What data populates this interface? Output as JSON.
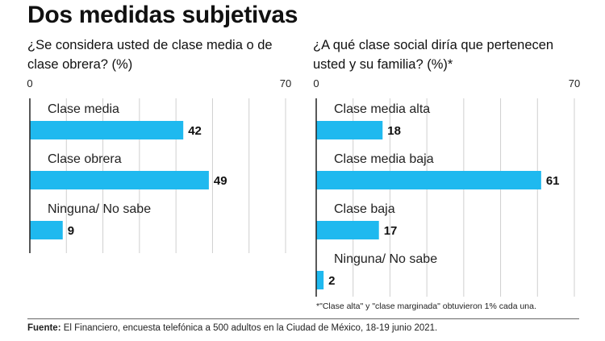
{
  "title": "Dos medidas subjetivas",
  "colors": {
    "bar": "#1fb9ef",
    "grid": "#cfcfcf",
    "axis": "#222222"
  },
  "chart_data": [
    {
      "type": "bar",
      "orientation": "horizontal",
      "title": "¿Se considera usted de clase media o de clase obrera? (%)",
      "categories": [
        "Clase media",
        "Clase obrera",
        "Ninguna/ No sabe"
      ],
      "values": [
        42,
        49,
        9
      ],
      "xlim": [
        0,
        70
      ],
      "tick_labels": [
        "0",
        "70"
      ]
    },
    {
      "type": "bar",
      "orientation": "horizontal",
      "title": "¿A qué clase social diría que pertenecen usted y su familia? (%)*",
      "categories": [
        "Clase media alta",
        "Clase media baja",
        "Clase baja",
        "Ninguna/ No sabe"
      ],
      "values": [
        18,
        61,
        17,
        2
      ],
      "xlim": [
        0,
        70
      ],
      "tick_labels": [
        "0",
        "70"
      ]
    }
  ],
  "footnote": "*\"Clase alta\" y \"clase marginada\" obtuvieron 1% cada una.",
  "source": {
    "label": "Fuente:",
    "text": " El Financiero, encuesta telefónica a 500 adultos en la Ciudad de México, 18-19 junio 2021."
  }
}
